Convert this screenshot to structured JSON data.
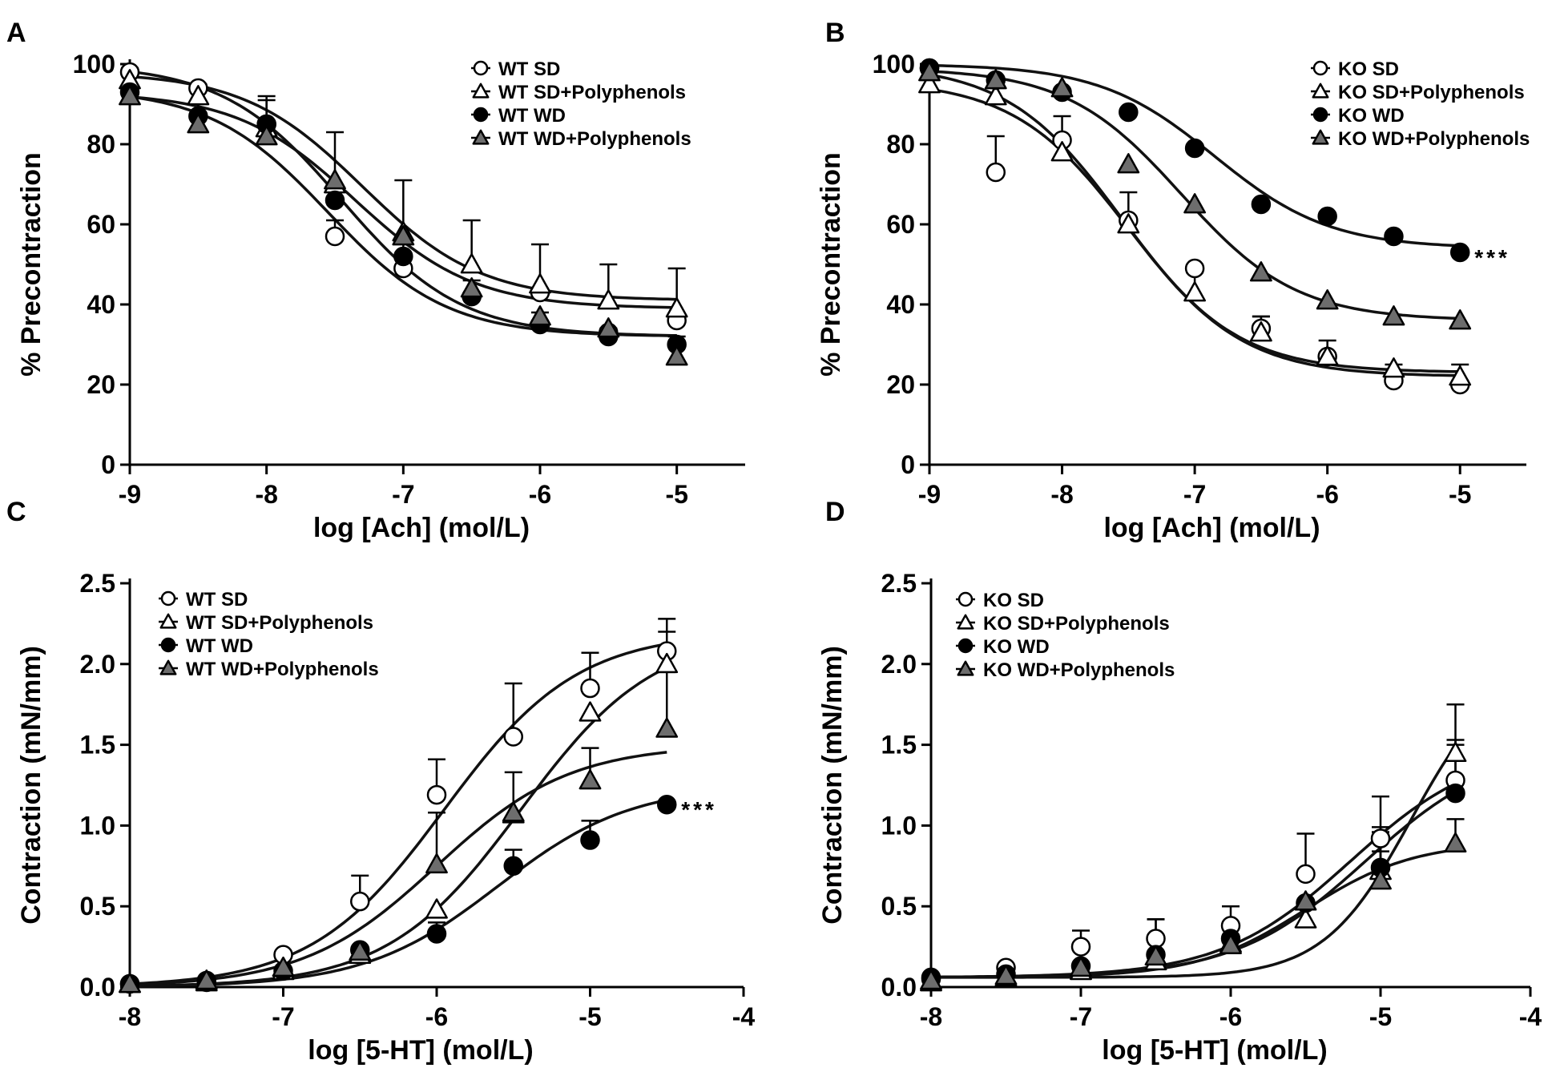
{
  "chart_data": [
    {
      "panel": "A",
      "type": "line",
      "xlabel": "log [Ach] (mol/L)",
      "ylabel": "% Precontraction",
      "xlim": [
        -9,
        -4.5
      ],
      "ylim": [
        0,
        100
      ],
      "xticks": [
        -9,
        -8,
        -7,
        -6,
        -5
      ],
      "xtick_labels": [
        "-9",
        "-8",
        "-7",
        "-6",
        "-5"
      ],
      "yticks": [
        0,
        20,
        40,
        60,
        80,
        100
      ],
      "ytick_labels": [
        "0",
        "20",
        "40",
        "60",
        "80",
        "100"
      ],
      "legend_position": "top-right",
      "annotation": "",
      "annotation_series": "",
      "x": [
        -9,
        -8.5,
        -8,
        -7.5,
        -7,
        -6.5,
        -6,
        -5.5,
        -5
      ],
      "series": [
        {
          "name": "WT SD",
          "marker": "circle",
          "fill": "#ffffff",
          "values": [
            98,
            94,
            85,
            57,
            49,
            42,
            43,
            33,
            36
          ],
          "errors": [
            0,
            0,
            0,
            4,
            7,
            0,
            0,
            0,
            0
          ],
          "fit": {
            "top": 100,
            "bottom": 32,
            "ec50": -7.45,
            "hill": 1.0
          }
        },
        {
          "name": "WT SD+Polyphenols",
          "marker": "triangle",
          "fill": "#ffffff",
          "values": [
            96,
            92,
            84,
            70,
            58,
            50,
            45,
            41,
            39
          ],
          "errors": [
            0,
            0,
            0,
            0,
            13,
            11,
            10,
            9,
            10
          ],
          "fit": {
            "top": 98,
            "bottom": 41,
            "ec50": -7.3,
            "hill": 1.0
          }
        },
        {
          "name": "WT WD",
          "marker": "circle",
          "fill": "#000000",
          "values": [
            93,
            87,
            85,
            66,
            52,
            42,
            35,
            32,
            30
          ],
          "errors": [
            0,
            0,
            7,
            0,
            0,
            4,
            3,
            2,
            2
          ],
          "fit": {
            "top": 94,
            "bottom": 32,
            "ec50": -7.55,
            "hill": 1.0
          }
        },
        {
          "name": "WT WD+Polyphenols",
          "marker": "triangle",
          "fill": "#6d6d6d",
          "values": [
            92,
            85,
            82,
            71,
            57,
            44,
            37,
            34,
            27
          ],
          "errors": [
            7,
            10,
            9,
            12,
            0,
            0,
            0,
            0,
            0
          ],
          "fit": {
            "top": 93,
            "bottom": 39,
            "ec50": -7.35,
            "hill": 1.0
          }
        }
      ],
      "legend": [
        "WT SD",
        "WT SD+Polyphenols",
        "WT WD",
        "WT WD+Polyphenols"
      ]
    },
    {
      "panel": "B",
      "type": "line",
      "xlabel": "log [Ach] (mol/L)",
      "ylabel": "% Precontraction",
      "xlim": [
        -9,
        -4.5
      ],
      "ylim": [
        0,
        100
      ],
      "xticks": [
        -9,
        -8,
        -7,
        -6,
        -5
      ],
      "xtick_labels": [
        "-9",
        "-8",
        "-7",
        "-6",
        "-5"
      ],
      "yticks": [
        0,
        20,
        40,
        60,
        80,
        100
      ],
      "ytick_labels": [
        "0",
        "20",
        "40",
        "60",
        "80",
        "100"
      ],
      "legend_position": "top-right",
      "annotation": "***",
      "annotation_series": "KO WD",
      "x": [
        -9,
        -8.5,
        -8,
        -7.5,
        -7,
        -6.5,
        -6,
        -5.5,
        -5
      ],
      "series": [
        {
          "name": "KO SD",
          "marker": "circle",
          "fill": "#ffffff",
          "values": [
            99,
            73,
            81,
            61,
            49,
            34,
            27,
            21,
            20
          ],
          "errors": [
            0,
            9,
            6,
            7,
            0,
            3,
            4,
            4,
            5
          ],
          "fit": {
            "top": 100,
            "bottom": 23,
            "ec50": -7.55,
            "hill": 1.0
          }
        },
        {
          "name": "KO SD+Polyphenols",
          "marker": "triangle",
          "fill": "#ffffff",
          "values": [
            95,
            92,
            78,
            60,
            43,
            33,
            27,
            24,
            22
          ],
          "errors": [
            0,
            0,
            0,
            0,
            5,
            4,
            0,
            0,
            0
          ],
          "fit": {
            "top": 96,
            "bottom": 22,
            "ec50": -7.5,
            "hill": 1.0
          }
        },
        {
          "name": "KO WD",
          "marker": "circle",
          "fill": "#000000",
          "values": [
            99,
            96,
            93,
            88,
            79,
            65,
            62,
            57,
            53
          ],
          "errors": [
            0,
            0,
            0,
            0,
            0,
            0,
            0,
            0,
            0
          ],
          "fit": {
            "top": 100,
            "bottom": 54,
            "ec50": -6.85,
            "hill": 1.0
          }
        },
        {
          "name": "KO WD+Polyphenols",
          "marker": "triangle",
          "fill": "#6d6d6d",
          "values": [
            98,
            96,
            94,
            75,
            65,
            48,
            41,
            37,
            36
          ],
          "errors": [
            0,
            0,
            0,
            0,
            0,
            0,
            0,
            0,
            0
          ],
          "fit": {
            "top": 99,
            "bottom": 36,
            "ec50": -7.1,
            "hill": 1.0
          }
        }
      ],
      "legend": [
        "KO SD",
        "KO SD+Polyphenols",
        "KO WD",
        "KO WD+Polyphenols"
      ]
    },
    {
      "panel": "C",
      "type": "line",
      "xlabel": "log [5-HT] (mol/L)",
      "ylabel": "Contraction (mN/mm)",
      "xlim": [
        -8,
        -4
      ],
      "ylim": [
        0,
        2.5
      ],
      "xticks": [
        -8,
        -7,
        -6,
        -5,
        -4
      ],
      "xtick_labels": [
        "-8",
        "-7",
        "-6",
        "-5",
        "-4"
      ],
      "yticks": [
        0,
        0.5,
        1.0,
        1.5,
        2.0,
        2.5
      ],
      "ytick_labels": [
        "0.0",
        "0.5",
        "1.0",
        "1.5",
        "2.0",
        "2.5"
      ],
      "legend_position": "top-left",
      "annotation": "***",
      "annotation_series": "WT WD",
      "x": [
        -8,
        -7.5,
        -7,
        -6.5,
        -6,
        -5.5,
        -5,
        -4.5
      ],
      "series": [
        {
          "name": "WT SD",
          "marker": "circle",
          "fill": "#ffffff",
          "values": [
            0.02,
            0.04,
            0.2,
            0.53,
            1.19,
            1.55,
            1.85,
            2.08
          ],
          "errors": [
            0,
            0,
            0,
            0.16,
            0.22,
            0.33,
            0.22,
            0.2
          ],
          "fit": {
            "top": 2.2,
            "bottom": 0,
            "ec50": -5.95,
            "hill": 1.0
          }
        },
        {
          "name": "WT SD+Polyphenols",
          "marker": "triangle",
          "fill": "#ffffff",
          "values": [
            0.02,
            0.03,
            0.1,
            0.2,
            0.48,
            1.07,
            1.7,
            2.0
          ],
          "errors": [
            0,
            0,
            0,
            0,
            0,
            0,
            0,
            0.2
          ],
          "fit": {
            "top": 2.2,
            "bottom": 0,
            "ec50": -5.45,
            "hill": 1.0
          }
        },
        {
          "name": "WT WD",
          "marker": "circle",
          "fill": "#000000",
          "values": [
            0.02,
            0.03,
            0.1,
            0.23,
            0.33,
            0.75,
            0.91,
            1.13
          ],
          "errors": [
            0,
            0,
            0,
            0,
            0.07,
            0.1,
            0.12,
            0
          ],
          "fit": {
            "top": 1.25,
            "bottom": 0,
            "ec50": -5.6,
            "hill": 1.0
          }
        },
        {
          "name": "WT WD+Polyphenols",
          "marker": "triangle",
          "fill": "#6d6d6d",
          "values": [
            0.02,
            0.04,
            0.12,
            0.22,
            0.76,
            1.08,
            1.28,
            1.6
          ],
          "errors": [
            0,
            0,
            0,
            0,
            0.32,
            0.25,
            0.2,
            0.35
          ],
          "fit": {
            "top": 1.5,
            "bottom": 0,
            "ec50": -6.0,
            "hill": 1.0
          }
        }
      ],
      "legend": [
        "WT SD",
        "WT SD+Polyphenols",
        "WT WD",
        "WT WD+Polyphenols"
      ]
    },
    {
      "panel": "D",
      "type": "line",
      "xlabel": "log [5-HT] (mol/L)",
      "ylabel": "Contraction (mN/mm)",
      "xlim": [
        -8,
        -4
      ],
      "ylim": [
        0,
        2.5
      ],
      "xticks": [
        -8,
        -7,
        -6,
        -5,
        -4
      ],
      "xtick_labels": [
        "-8",
        "-7",
        "-6",
        "-5",
        "-4"
      ],
      "yticks": [
        0,
        0.5,
        1.0,
        1.5,
        2.0,
        2.5
      ],
      "ytick_labels": [
        "0.0",
        "0.5",
        "1.0",
        "1.5",
        "2.0",
        "2.5"
      ],
      "legend_position": "top-left",
      "annotation": "",
      "annotation_series": "",
      "x": [
        -8,
        -7.5,
        -7,
        -6.5,
        -6,
        -5.5,
        -5,
        -4.5
      ],
      "series": [
        {
          "name": "KO SD",
          "marker": "circle",
          "fill": "#ffffff",
          "values": [
            0.05,
            0.12,
            0.25,
            0.3,
            0.38,
            0.7,
            0.92,
            1.28
          ],
          "errors": [
            0,
            0,
            0.1,
            0.12,
            0.12,
            0.25,
            0.26,
            0.25
          ],
          "fit": {
            "top": 1.5,
            "bottom": 0.06,
            "ec50": -5.2,
            "hill": 1.0
          }
        },
        {
          "name": "KO SD+Polyphenols",
          "marker": "triangle",
          "fill": "#ffffff",
          "values": [
            0.03,
            0.06,
            0.1,
            0.16,
            0.27,
            0.42,
            0.72,
            1.45
          ],
          "errors": [
            0,
            0,
            0,
            0,
            0,
            0,
            0.24,
            0.3
          ],
          "fit": {
            "top": 2.0,
            "bottom": 0.06,
            "ec50": -4.8,
            "hill": 1.5
          }
        },
        {
          "name": "KO WD",
          "marker": "circle",
          "fill": "#000000",
          "values": [
            0.06,
            0.08,
            0.13,
            0.2,
            0.3,
            0.52,
            0.74,
            1.2
          ],
          "errors": [
            0,
            0,
            0,
            0.22,
            0,
            0,
            0.25,
            0.3
          ],
          "fit": {
            "top": 1.5,
            "bottom": 0.06,
            "ec50": -5.1,
            "hill": 1.0
          }
        },
        {
          "name": "KO WD+Polyphenols",
          "marker": "triangle",
          "fill": "#6d6d6d",
          "values": [
            0.04,
            0.07,
            0.12,
            0.19,
            0.26,
            0.53,
            0.66,
            0.89
          ],
          "errors": [
            0,
            0,
            0,
            0,
            0,
            0,
            0.18,
            0.15
          ],
          "fit": {
            "top": 0.9,
            "bottom": 0.06,
            "ec50": -5.5,
            "hill": 1.2
          }
        }
      ],
      "legend": [
        "KO SD",
        "KO SD+Polyphenols",
        "KO WD",
        "KO WD+Polyphenols"
      ]
    }
  ]
}
